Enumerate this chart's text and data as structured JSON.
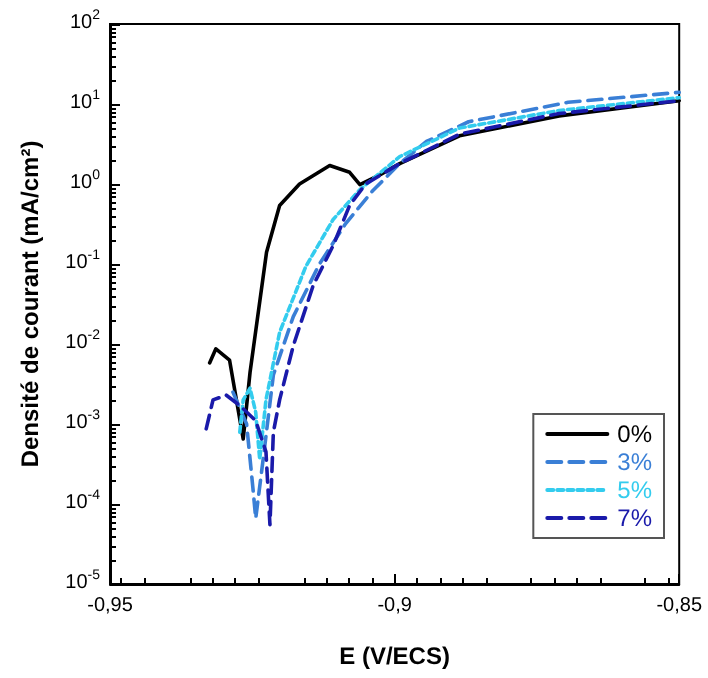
{
  "chart_data": {
    "type": "line",
    "xlabel": "E (V/ECS)",
    "ylabel": "Densité de courant (mA/cm²)",
    "log": "y",
    "grid": false,
    "legend": "bottom right",
    "marker": "none",
    "xlim": [
      -0.95,
      -0.85
    ],
    "xticks": [
      {
        "value": -0.95,
        "label": "-0,95"
      },
      {
        "value": -0.9,
        "label": "-0,9"
      },
      {
        "value": -0.85,
        "label": "-0,85"
      }
    ],
    "ylim": [
      1e-05,
      100
    ],
    "yticks": [
      {
        "value": 1e-05,
        "label": "10$^{-5}$"
      },
      {
        "value": 0.0001,
        "label": "10$^{-4}$"
      },
      {
        "value": 0.001,
        "label": "10$^{-3}$"
      },
      {
        "value": 0.01,
        "label": "10$^{-2}$"
      },
      {
        "value": 0.1,
        "label": "10$^{-1}$"
      },
      {
        "value": 1,
        "label": "10$^{0}$"
      },
      {
        "value": 10,
        "label": "10$^{1}$"
      },
      {
        "value": 100,
        "label": "10$^{2}$"
      }
    ],
    "series": [
      {
        "name": "0%",
        "color": "#000000",
        "line_style": "solid",
        "x": [
          -0.9325,
          -0.9314,
          -0.929,
          -0.9266,
          -0.9254,
          -0.9225,
          -0.9202,
          -0.9167,
          -0.9114,
          -0.9079,
          -0.9061,
          -0.9026,
          -0.8991,
          -0.8886,
          -0.8711,
          -0.85
        ],
        "values": [
          0.0058,
          0.0087,
          0.0063,
          0.00065,
          0.0044,
          0.14,
          0.54,
          1.0,
          1.7,
          1.4,
          0.98,
          1.3,
          1.8,
          4.0,
          7.1,
          11
        ]
      },
      {
        "name": "3%",
        "color": "#3a7fd6",
        "line_style": "dashed",
        "x": [
          -0.9284,
          -0.926,
          -0.9249,
          -0.9244,
          -0.923,
          -0.9213,
          -0.9178,
          -0.9132,
          -0.9086,
          -0.9038,
          -0.8991,
          -0.8944,
          -0.887,
          -0.8695,
          -0.85
        ],
        "values": [
          0.0025,
          0.001,
          0.00016,
          6.6e-05,
          0.00041,
          0.0041,
          0.022,
          0.1,
          0.32,
          0.83,
          1.8,
          3.4,
          6.0,
          10.5,
          14
        ]
      },
      {
        "name": "5%",
        "color": "#33ccee",
        "line_style": "dotted",
        "x": [
          -0.9272,
          -0.9266,
          -0.9254,
          -0.9244,
          -0.9237,
          -0.9226,
          -0.9202,
          -0.9156,
          -0.9108,
          -0.9061,
          -0.8991,
          -0.8886,
          -0.8711,
          -0.85
        ],
        "values": [
          0.00079,
          0.002,
          0.0028,
          0.0014,
          0.00036,
          0.002,
          0.014,
          0.093,
          0.36,
          0.85,
          2.2,
          5,
          8.3,
          12
        ]
      },
      {
        "name": "7%",
        "color": "#1a1aaa",
        "line_style": "dashed",
        "x": [
          -0.9331,
          -0.9319,
          -0.9296,
          -0.9272,
          -0.9244,
          -0.9226,
          -0.9219,
          -0.9213,
          -0.9202,
          -0.9178,
          -0.9143,
          -0.9108,
          -0.9079,
          -0.9051,
          -0.8991,
          -0.8886,
          -0.8711,
          -0.85
        ],
        "values": [
          0.00087,
          0.002,
          0.0023,
          0.0017,
          0.0011,
          0.00045,
          5.5e-05,
          0.00079,
          0.002,
          0.0095,
          0.054,
          0.17,
          0.54,
          1.0,
          1.8,
          4.2,
          7.6,
          11
        ]
      }
    ]
  }
}
